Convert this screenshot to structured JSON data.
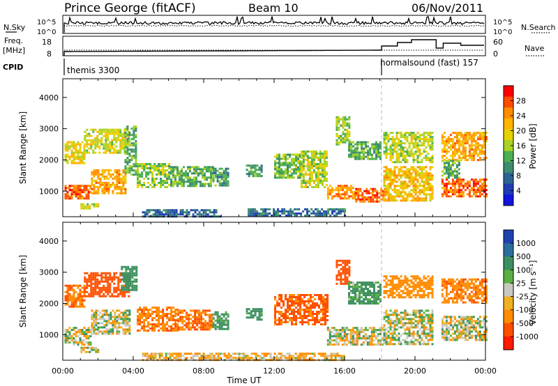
{
  "header": {
    "station": "Prince George (fitACF)",
    "beam": "Beam 10",
    "date": "06/Nov/2011"
  },
  "top_panels": {
    "nsky_label": "N.Sky",
    "nsearch_label": "N.Search",
    "freq_label_1": "Freq.",
    "freq_label_2": "[MHz]",
    "nave_label": "Nave",
    "cpid_label": "CPID",
    "noise_ticks_left": [
      "10^5",
      "10^0"
    ],
    "noise_ticks_right": [
      "10^5",
      "10^0"
    ],
    "freq_ticks": [
      "18",
      "8"
    ],
    "nave_ticks": [
      "60",
      "0"
    ],
    "cpid_segments": [
      {
        "label": "themis 3300",
        "start_hour": 0.0,
        "end_hour": 18.1
      },
      {
        "label": "normalsound (fast) 157",
        "start_hour": 18.1,
        "end_hour": 24.0
      }
    ]
  },
  "colorbars": {
    "power": {
      "label": "Power [dB]",
      "ticks": [
        "28",
        "24",
        "20",
        "16",
        "12",
        "8",
        "4"
      ],
      "colors": [
        "#ff0000",
        "#ff4a00",
        "#ff8c00",
        "#ffb400",
        "#e6d200",
        "#a8d226",
        "#4cb050",
        "#3c8c6e",
        "#2a6494",
        "#1f3cb4",
        "#1414dc"
      ]
    },
    "velocity": {
      "label": "Velocity [m s⁻¹]",
      "ticks": [
        "1000",
        "500",
        "100",
        "25",
        "-25",
        "-100",
        "-500",
        "-1000"
      ],
      "colors": [
        "#2040b0",
        "#2a6e9e",
        "#3c9060",
        "#5ab040",
        "#c8c8c0",
        "#f0b020",
        "#ff8c00",
        "#ff5000",
        "#ff1a00"
      ]
    }
  },
  "chart_data": [
    {
      "type": "heatmap",
      "name": "power-panel",
      "ylabel": "Slant Range [km]",
      "x_range_hours": [
        0,
        24
      ],
      "ylim": [
        180,
        4600
      ],
      "yticks": [
        1000,
        2000,
        3000,
        4000
      ],
      "ytick_labels": [
        "1000",
        "2000",
        "3000",
        "4000"
      ],
      "data_gaps_hours": [
        [
          9.2,
          9.8
        ],
        [
          10.2,
          10.6
        ],
        [
          21.0,
          21.5
        ]
      ],
      "regions": [
        {
          "t0": 0.1,
          "t1": 1.6,
          "r0": 750,
          "r1": 1200,
          "val": 26
        },
        {
          "t0": 1.6,
          "t1": 3.6,
          "r0": 950,
          "r1": 1700,
          "val": 22
        },
        {
          "t0": 0.1,
          "t1": 1.2,
          "r0": 1900,
          "r1": 2600,
          "val": 18
        },
        {
          "t0": 1.2,
          "t1": 3.8,
          "r0": 2200,
          "r1": 3000,
          "val": 17
        },
        {
          "t0": 3.5,
          "t1": 4.2,
          "r0": 1500,
          "r1": 3100,
          "val": 12
        },
        {
          "t0": 1.0,
          "t1": 2.0,
          "r0": 470,
          "r1": 610,
          "val": 16
        },
        {
          "t0": 4.2,
          "t1": 6.1,
          "r0": 1150,
          "r1": 1900,
          "val": 14
        },
        {
          "t0": 6.1,
          "t1": 8.5,
          "r0": 1150,
          "r1": 1800,
          "val": 12
        },
        {
          "t0": 8.5,
          "t1": 9.4,
          "r0": 1200,
          "r1": 1750,
          "val": 10
        },
        {
          "t0": 10.4,
          "t1": 11.3,
          "r0": 1450,
          "r1": 1850,
          "val": 11
        },
        {
          "t0": 12.0,
          "t1": 13.5,
          "r0": 1450,
          "r1": 2200,
          "val": 13
        },
        {
          "t0": 13.5,
          "t1": 15.0,
          "r0": 1100,
          "r1": 2300,
          "val": 16
        },
        {
          "t0": 15.0,
          "t1": 16.6,
          "r0": 750,
          "r1": 1200,
          "val": 24
        },
        {
          "t0": 16.6,
          "t1": 18.3,
          "r0": 650,
          "r1": 1100,
          "val": 26
        },
        {
          "t0": 15.5,
          "t1": 16.3,
          "r0": 2500,
          "r1": 3400,
          "val": 14
        },
        {
          "t0": 16.2,
          "t1": 18.0,
          "r0": 2000,
          "r1": 2600,
          "val": 12
        },
        {
          "t0": 18.2,
          "t1": 21.0,
          "r0": 1900,
          "r1": 2900,
          "val": 16
        },
        {
          "t0": 18.2,
          "t1": 21.0,
          "r0": 700,
          "r1": 1800,
          "val": 20
        },
        {
          "t0": 21.5,
          "t1": 24.0,
          "r0": 800,
          "r1": 1400,
          "val": 26
        },
        {
          "t0": 21.5,
          "t1": 24.0,
          "r0": 2000,
          "r1": 2900,
          "val": 22
        },
        {
          "t0": 21.5,
          "t1": 22.5,
          "r0": 1400,
          "r1": 2000,
          "val": 12
        },
        {
          "t0": 4.5,
          "t1": 9.0,
          "r0": 190,
          "r1": 420,
          "val": 6
        },
        {
          "t0": 10.5,
          "t1": 16.0,
          "r0": 190,
          "r1": 450,
          "val": 7
        }
      ]
    },
    {
      "type": "heatmap",
      "name": "velocity-panel",
      "ylabel": "Slant Range [km]",
      "xlabel": "Time UT",
      "x_range_hours": [
        0,
        24
      ],
      "ylim": [
        180,
        4600
      ],
      "yticks": [
        1000,
        2000,
        3000,
        4000
      ],
      "ytick_labels": [
        "1000",
        "2000",
        "3000",
        "4000"
      ],
      "xtick_labels": [
        "00:00",
        "04:00",
        "08:00",
        "12:00",
        "16:00",
        "20:00",
        "00:00"
      ],
      "xtick_hours": [
        0,
        4,
        8,
        12,
        16,
        20,
        24
      ],
      "regions": [
        {
          "t0": 0.1,
          "t1": 1.6,
          "r0": 700,
          "r1": 1250,
          "val": 0
        },
        {
          "t0": 1.6,
          "t1": 3.8,
          "r0": 1000,
          "r1": 1800,
          "val": 0
        },
        {
          "t0": 0.1,
          "t1": 1.2,
          "r0": 1900,
          "r1": 2600,
          "val": -300
        },
        {
          "t0": 1.2,
          "t1": 3.8,
          "r0": 2200,
          "r1": 3000,
          "val": -400
        },
        {
          "t0": 3.3,
          "t1": 4.2,
          "r0": 2400,
          "r1": 3200,
          "val": 150
        },
        {
          "t0": 1.0,
          "t1": 2.0,
          "r0": 470,
          "r1": 610,
          "val": 0
        },
        {
          "t0": 4.2,
          "t1": 6.5,
          "r0": 1100,
          "r1": 1900,
          "val": -250
        },
        {
          "t0": 6.5,
          "t1": 8.5,
          "r0": 1150,
          "r1": 1800,
          "val": -300
        },
        {
          "t0": 8.5,
          "t1": 9.4,
          "r0": 1200,
          "r1": 1750,
          "val": 120
        },
        {
          "t0": 10.4,
          "t1": 11.3,
          "r0": 1450,
          "r1": 1850,
          "val": 150
        },
        {
          "t0": 12.0,
          "t1": 15.0,
          "r0": 1300,
          "r1": 2300,
          "val": -350
        },
        {
          "t0": 15.0,
          "t1": 18.3,
          "r0": 650,
          "r1": 1250,
          "val": 0
        },
        {
          "t0": 15.5,
          "t1": 16.3,
          "r0": 2600,
          "r1": 3400,
          "val": -600
        },
        {
          "t0": 16.2,
          "t1": 18.0,
          "r0": 2000,
          "r1": 2700,
          "val": 120
        },
        {
          "t0": 18.2,
          "t1": 21.0,
          "r0": 2200,
          "r1": 2900,
          "val": -200
        },
        {
          "t0": 18.2,
          "t1": 21.0,
          "r0": 700,
          "r1": 1800,
          "val": 0
        },
        {
          "t0": 21.5,
          "t1": 24.0,
          "r0": 800,
          "r1": 1600,
          "val": 0
        },
        {
          "t0": 21.5,
          "t1": 24.0,
          "r0": 2000,
          "r1": 2800,
          "val": -250
        },
        {
          "t0": 4.5,
          "t1": 16.0,
          "r0": 190,
          "r1": 420,
          "val": -60
        }
      ]
    }
  ]
}
